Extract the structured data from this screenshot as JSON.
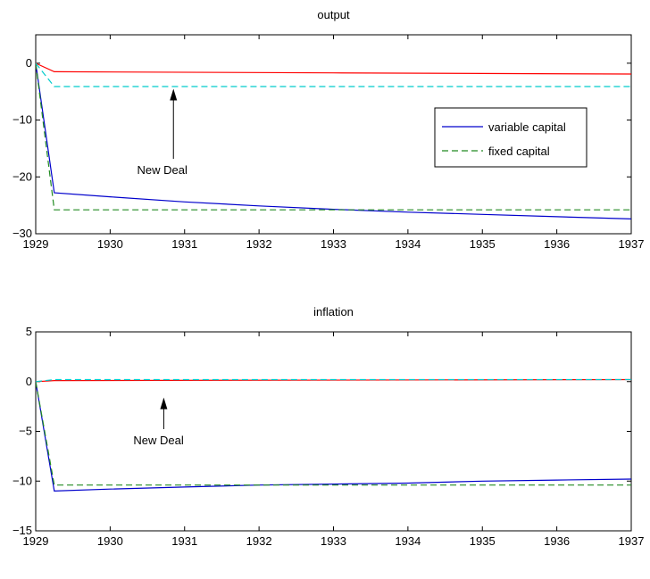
{
  "colors": {
    "variable_capital": "#0000cc",
    "fixed_capital": "#228b22",
    "variable_capital_alt": "#ff0000",
    "fixed_capital_alt": "#00cccc",
    "axes": "#000000"
  },
  "chart_data": [
    {
      "type": "line",
      "title": "output",
      "xlabel": "",
      "ylabel": "",
      "xlim": [
        1929,
        1937
      ],
      "ylim": [
        -30,
        5
      ],
      "xticks": [
        1929,
        1930,
        1931,
        1932,
        1933,
        1934,
        1935,
        1936,
        1937
      ],
      "yticks": [
        -30,
        -20,
        -10,
        0
      ],
      "grid": false,
      "legend": {
        "placement": "right",
        "entries": [
          "variable capital",
          "fixed capital"
        ]
      },
      "series": [
        {
          "name": "variable capital",
          "style": "solid",
          "color": "#0000cc",
          "x": [
            1929,
            1929.25,
            1930,
            1931,
            1932,
            1933,
            1934,
            1935,
            1936,
            1937
          ],
          "y": [
            0,
            -22.8,
            -23.5,
            -24.4,
            -25.1,
            -25.7,
            -26.2,
            -26.6,
            -27.0,
            -27.4
          ]
        },
        {
          "name": "fixed capital",
          "style": "dashed",
          "color": "#228b22",
          "x": [
            1929,
            1929.25,
            1937
          ],
          "y": [
            0,
            -25.8,
            -25.8
          ]
        },
        {
          "style": "solid",
          "color": "#ff0000",
          "x": [
            1929,
            1929.25,
            1933,
            1937
          ],
          "y": [
            0,
            -1.5,
            -1.7,
            -1.9
          ]
        },
        {
          "style": "dashed",
          "color": "#00cccc",
          "x": [
            1929,
            1929.25,
            1937
          ],
          "y": [
            0,
            -4.1,
            -4.1
          ]
        }
      ],
      "annotations": [
        {
          "text": "New Deal",
          "x": 1930.7,
          "y": -19.5,
          "arrow_to": [
            1930.85,
            -4.5
          ]
        }
      ]
    },
    {
      "type": "line",
      "title": "inflation",
      "xlabel": "",
      "ylabel": "",
      "xlim": [
        1929,
        1937
      ],
      "ylim": [
        -15,
        5
      ],
      "xticks": [
        1929,
        1930,
        1931,
        1932,
        1933,
        1934,
        1935,
        1936,
        1937
      ],
      "yticks": [
        -15,
        -10,
        -5,
        0,
        5
      ],
      "grid": false,
      "legend": null,
      "series": [
        {
          "name": "variable capital",
          "style": "solid",
          "color": "#0000cc",
          "x": [
            1929,
            1929.25,
            1930,
            1931,
            1932,
            1933,
            1934,
            1935,
            1936,
            1937
          ],
          "y": [
            0,
            -11.0,
            -10.8,
            -10.6,
            -10.4,
            -10.3,
            -10.2,
            -10.0,
            -9.9,
            -9.8
          ]
        },
        {
          "name": "fixed capital",
          "style": "dashed",
          "color": "#228b22",
          "x": [
            1929,
            1929.25,
            1937
          ],
          "y": [
            0,
            -10.4,
            -10.4
          ]
        },
        {
          "style": "solid",
          "color": "#ff0000",
          "x": [
            1929,
            1929.25,
            1937
          ],
          "y": [
            0,
            0.1,
            0.2
          ]
        },
        {
          "style": "dashed",
          "color": "#00cccc",
          "x": [
            1929,
            1929.25,
            1937
          ],
          "y": [
            0,
            0.2,
            0.2
          ]
        }
      ],
      "annotations": [
        {
          "text": "New Deal",
          "x": 1930.65,
          "y": -6.3,
          "arrow_to": [
            1930.72,
            -1.6
          ]
        }
      ]
    }
  ]
}
